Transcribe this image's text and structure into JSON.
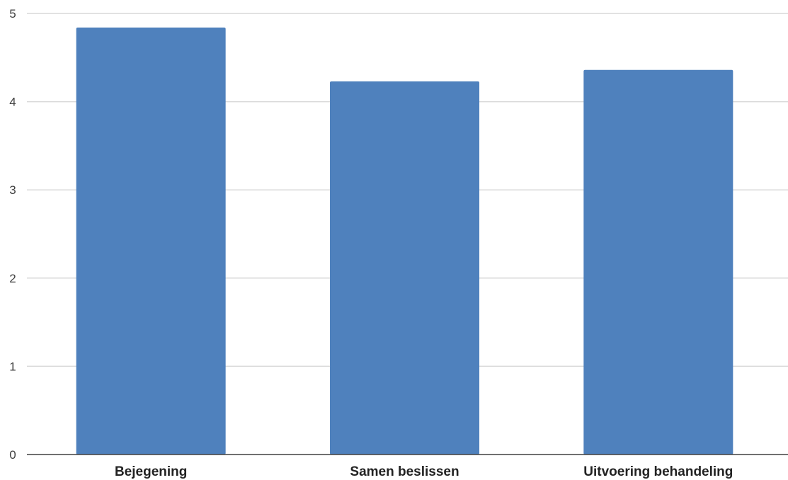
{
  "chart_data": {
    "type": "bar",
    "title": "",
    "xlabel": "",
    "ylabel": "",
    "categories": [
      "Bejegening",
      "Samen beslissen",
      "Uitvoering behandeling"
    ],
    "values": [
      4.84,
      4.23,
      4.36
    ],
    "ylim": [
      0,
      5
    ],
    "yticks": [
      "0",
      "1",
      "2",
      "3",
      "4",
      "5"
    ],
    "grid": true,
    "legend": "none",
    "bar_color": "#4f81bd"
  }
}
